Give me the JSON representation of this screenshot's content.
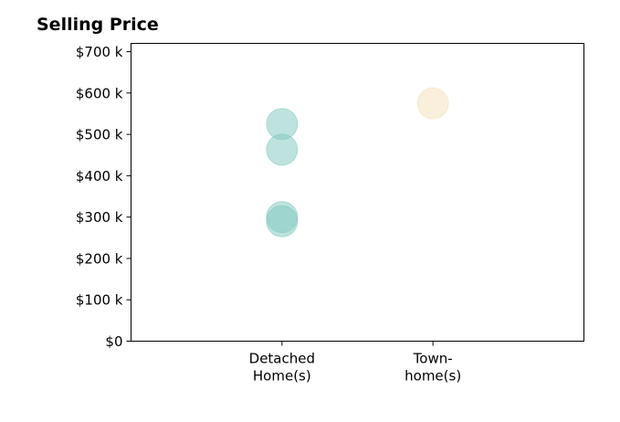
{
  "chart_data": {
    "type": "scatter",
    "title": "Selling Price",
    "xlabel": "",
    "ylabel": "",
    "categories": [
      [
        "Detached",
        "Home(s)"
      ],
      [
        "Town-",
        "home(s)"
      ]
    ],
    "yticks": [
      0,
      100000,
      200000,
      300000,
      400000,
      500000,
      600000,
      700000
    ],
    "ytick_labels": [
      "$0",
      "$100 k",
      "$200 k",
      "$300 k",
      "$400 k",
      "$500 k",
      "$600 k",
      "$700 k"
    ],
    "ylim": [
      0,
      720000
    ],
    "xlim": [
      0,
      3
    ],
    "grid": false,
    "series": [
      {
        "category_index": 0,
        "color": "#7ec8be",
        "values": [
          525000,
          463000,
          300000,
          290000
        ]
      },
      {
        "category_index": 1,
        "color": "#f5e0b5",
        "values": [
          575000
        ]
      }
    ]
  }
}
